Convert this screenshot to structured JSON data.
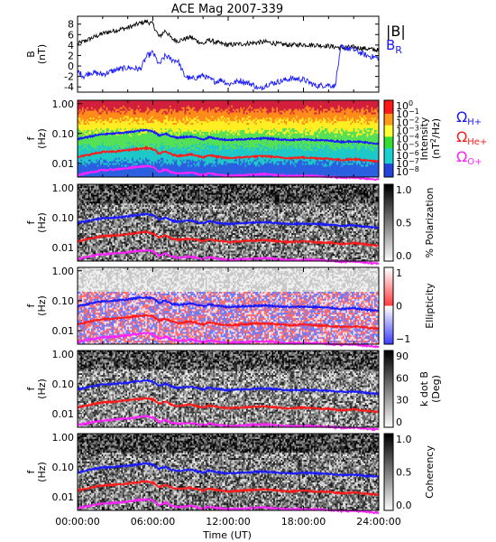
{
  "chart_data": {
    "title": "ACE Mag 2007-339",
    "xlabel": "Time (UT)",
    "x_ticks": [
      "00:00:00",
      "06:00:00",
      "12:00:00",
      "18:00:00",
      "24:00:00"
    ],
    "x_range_hours": [
      0,
      24
    ],
    "panels": [
      {
        "type": "line",
        "ylabel_main": "B",
        "ylabel_unit": "(nT)",
        "ylim": [
          -5,
          9.5
        ],
        "yticks": [
          "-4",
          "-2",
          "0",
          "2",
          "4",
          "6",
          "8"
        ],
        "legend": [
          {
            "text": "|B|",
            "color": "#000000"
          },
          {
            "text": "B",
            "sub": "R",
            "color": "#1a1aff"
          }
        ],
        "series": [
          {
            "name": "|B|",
            "color": "#000000",
            "x": [
              0,
              1,
              2,
              3,
              4,
              5,
              5.5,
              6,
              6.5,
              7,
              7.5,
              8,
              9,
              10,
              10.5,
              11,
              12,
              13,
              14,
              15,
              16,
              17,
              18,
              19,
              20,
              21,
              22,
              23,
              24
            ],
            "y": [
              4.2,
              5.2,
              6.2,
              6.8,
              7.3,
              8.2,
              8.5,
              8.0,
              5.5,
              6.8,
              5.2,
              4.8,
              5.5,
              4.2,
              5.0,
              4.5,
              4.0,
              4.2,
              4.4,
              4.6,
              4.2,
              4.0,
              4.1,
              4.0,
              3.8,
              3.5,
              3.6,
              3.3,
              3.0
            ]
          },
          {
            "name": "B",
            "sub": "R",
            "color": "#1a1aff",
            "x": [
              0,
              0.5,
              1,
              2,
              3,
              4,
              5,
              5.5,
              6,
              6.5,
              7,
              7.5,
              8,
              8.5,
              9,
              9.5,
              10,
              10.5,
              11,
              11.5,
              12,
              13,
              14,
              14.5,
              15,
              16,
              17,
              18,
              18.5,
              19,
              20,
              20.5,
              21,
              22,
              23,
              24
            ],
            "y": [
              -1,
              -2,
              -1.2,
              -1.6,
              -0.8,
              -0.3,
              -0.6,
              1.8,
              2.6,
              0.2,
              2.0,
              1.2,
              1.0,
              -1.8,
              -2.5,
              -2.2,
              -1.8,
              -2.5,
              -3.0,
              -2.6,
              -3.5,
              -2.8,
              -3.6,
              -4.5,
              -3.6,
              -3.0,
              -2.4,
              -2.6,
              -3.2,
              -3.8,
              -3.6,
              -3.9,
              3.6,
              3.1,
              2.0,
              1.5
            ]
          }
        ]
      },
      {
        "type": "heatmap",
        "ylabel_main": "f",
        "ylabel_unit": "(Hz)",
        "ylim": [
          0.0035,
          1.3
        ],
        "yscale": "log",
        "yticks": [
          "1.00",
          "0.10",
          "0.01"
        ],
        "colorbar_ticks": [
          "10",
          "10",
          "10",
          "10",
          "10",
          "10",
          "10",
          "10",
          "10"
        ],
        "colorbar_tick_exponents": [
          "0",
          "−1",
          "−2",
          "−3",
          "−4",
          "−5",
          "−6",
          "−7",
          "−8"
        ],
        "colorbar_label_line1": "Intensity",
        "colorbar_label_line2_parts": [
          "(nT",
          "2",
          "/Hz)"
        ],
        "overlay_labels": [
          {
            "text": "Ω",
            "sub": "H+",
            "color": "#1a1aff"
          },
          {
            "text": "Ω",
            "sub": "He+",
            "color": "#ff1a1a"
          },
          {
            "text": "Ω",
            "sub": "O+",
            "color": "#ff22ff"
          }
        ]
      },
      {
        "type": "heatmap",
        "ylabel_main": "f",
        "ylabel_unit": "(Hz)",
        "yscale": "log",
        "yticks": [
          "1.00",
          "0.10",
          "0.01"
        ],
        "colorbar_ticks": [
          "1.0",
          "0.5",
          "0.0"
        ],
        "colorbar_label": "% Polarization"
      },
      {
        "type": "heatmap",
        "ylabel_main": "f",
        "ylabel_unit": "(Hz)",
        "yscale": "log",
        "yticks": [
          "1.00",
          "0.10",
          "0.01"
        ],
        "colorbar_ticks": [
          "1",
          "0",
          "−1"
        ],
        "colorbar_label": "Ellipticity"
      },
      {
        "type": "heatmap",
        "ylabel_main": "f",
        "ylabel_unit": "(Hz)",
        "yscale": "log",
        "yticks": [
          "1.00",
          "0.10",
          "0.01"
        ],
        "colorbar_ticks": [
          "90",
          "60",
          "30",
          "0"
        ],
        "colorbar_label_line1": "k dot B",
        "colorbar_label_line2": "(Deg)"
      },
      {
        "type": "heatmap",
        "ylabel_main": "f",
        "ylabel_unit": "(Hz)",
        "yscale": "log",
        "yticks": [
          "1.00",
          "0.10",
          "0.01"
        ],
        "colorbar_ticks": [
          "1.0",
          "0.5",
          "0.0"
        ],
        "colorbar_label": "Coherency"
      }
    ],
    "gyrofrequency_lines_hz": {
      "x": [
        0,
        1,
        2,
        3,
        4,
        5,
        5.5,
        6,
        6.5,
        7,
        7.5,
        8,
        9,
        10,
        10.5,
        11,
        12,
        13,
        14,
        15,
        16,
        17,
        18,
        19,
        20,
        21,
        22,
        23,
        24
      ],
      "H+": [
        0.065,
        0.08,
        0.095,
        0.1,
        0.11,
        0.125,
        0.13,
        0.12,
        0.085,
        0.1,
        0.08,
        0.072,
        0.08,
        0.064,
        0.075,
        0.068,
        0.061,
        0.064,
        0.067,
        0.07,
        0.064,
        0.061,
        0.063,
        0.061,
        0.058,
        0.053,
        0.055,
        0.05,
        0.046
      ],
      "He+": [
        0.016,
        0.02,
        0.024,
        0.025,
        0.028,
        0.031,
        0.033,
        0.03,
        0.021,
        0.025,
        0.02,
        0.018,
        0.02,
        0.016,
        0.019,
        0.017,
        0.015,
        0.016,
        0.017,
        0.0175,
        0.016,
        0.015,
        0.016,
        0.015,
        0.0145,
        0.013,
        0.014,
        0.0125,
        0.0115
      ],
      "O+": [
        0.0041,
        0.005,
        0.0059,
        0.0063,
        0.0069,
        0.0078,
        0.0082,
        0.0075,
        0.0053,
        0.0063,
        0.005,
        0.0045,
        0.005,
        0.004,
        0.0047,
        0.0043,
        0.0038,
        0.004,
        0.0042,
        0.0044,
        0.004,
        0.0038,
        0.0039,
        0.0038,
        0.0036,
        0.0033,
        0.0034,
        0.0031,
        0.0029
      ]
    },
    "colors": {
      "h_plus": "#1a1aff",
      "he_plus": "#ff1a1a",
      "o_plus": "#ff22ff",
      "mag": "#000000",
      "br": "#1a1aff"
    }
  }
}
